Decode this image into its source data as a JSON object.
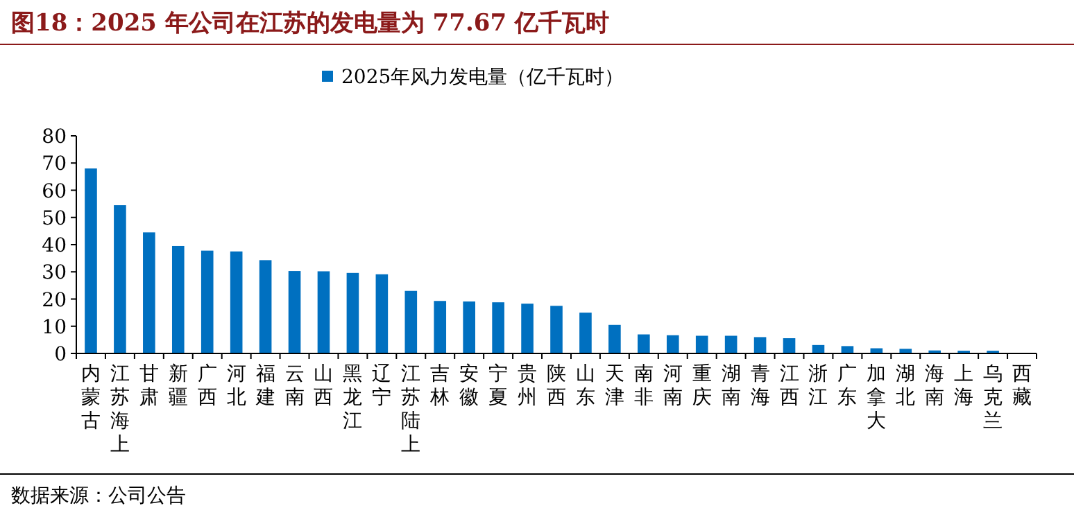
{
  "chart_data": {
    "type": "bar",
    "title": "图18：2025 年公司在江苏的发电量为 77.67 亿千瓦时",
    "categories": [
      "内蒙古",
      "江苏海上",
      "甘肃",
      "新疆",
      "广西",
      "河北",
      "福建",
      "云南",
      "山西",
      "黑龙江",
      "辽宁",
      "江苏陆上",
      "吉林",
      "安徽",
      "宁夏",
      "贵州",
      "陕西",
      "山东",
      "天津",
      "南非",
      "河南",
      "重庆",
      "湖南",
      "青海",
      "江西",
      "浙江",
      "广东",
      "加拿大",
      "湖北",
      "海南",
      "上海",
      "乌克兰",
      "西藏"
    ],
    "series": [
      {
        "name": "2025年风力发电量（亿千瓦时）",
        "color": "#0070c0",
        "values": [
          68,
          54.5,
          44.5,
          39.5,
          37.8,
          37.5,
          34.3,
          30.3,
          30.2,
          29.6,
          29.1,
          23,
          19.3,
          19.1,
          18.8,
          18.3,
          17.5,
          15,
          10.5,
          7,
          6.7,
          6.5,
          6.5,
          6,
          5.6,
          3.1,
          2.7,
          1.9,
          1.7,
          1.1,
          1,
          1,
          0
        ]
      }
    ],
    "ylim": [
      0,
      80
    ],
    "yticks": [
      0,
      10,
      20,
      30,
      40,
      50,
      60,
      70,
      80
    ],
    "legend": "top",
    "annotations": [
      "数据来源：公司公告"
    ]
  }
}
